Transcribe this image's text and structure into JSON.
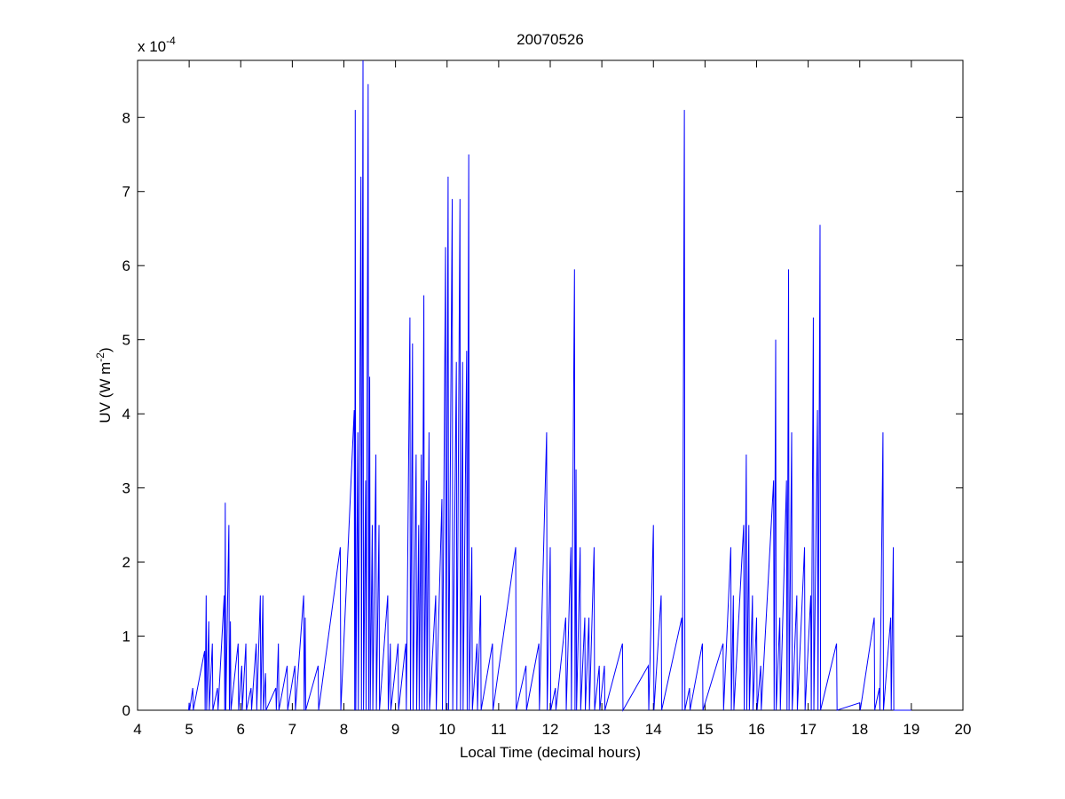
{
  "chart_data": {
    "type": "line",
    "title": "20070526",
    "xlabel": "Local Time (decimal hours)",
    "ylabel": {
      "text": "UV (W m",
      "superscript": "-2",
      "suffix": ")"
    },
    "y_multiplier": {
      "text": "x 10",
      "superscript": "-4"
    },
    "color": "#0000ff",
    "xlim": [
      4,
      20
    ],
    "xticks": [
      4,
      5,
      6,
      7,
      8,
      9,
      10,
      11,
      12,
      13,
      14,
      15,
      16,
      17,
      18,
      19,
      20
    ],
    "ylim": [
      0,
      8.77
    ],
    "yticks": [
      0,
      1,
      2,
      3,
      4,
      5,
      6,
      7,
      8
    ],
    "x": [
      4.99,
      5.0,
      5.01,
      5.07,
      5.08,
      5.3,
      5.31,
      5.33,
      5.34,
      5.38,
      5.39,
      5.45,
      5.46,
      5.55,
      5.56,
      5.68,
      5.69,
      5.7,
      5.71,
      5.77,
      5.78,
      5.8,
      5.81,
      5.95,
      5.96,
      6.02,
      6.03,
      6.1,
      6.11,
      6.2,
      6.21,
      6.3,
      6.31,
      6.38,
      6.39,
      6.43,
      6.44,
      6.48,
      6.49,
      6.68,
      6.69,
      6.73,
      6.74,
      6.9,
      6.91,
      7.05,
      7.06,
      7.22,
      7.23,
      7.25,
      7.26,
      7.5,
      7.51,
      7.93,
      7.94,
      8.2,
      8.21,
      8.22,
      8.23,
      8.27,
      8.28,
      8.33,
      8.34,
      8.37,
      8.38,
      8.42,
      8.43,
      8.47,
      8.48,
      8.5,
      8.51,
      8.55,
      8.56,
      8.62,
      8.63,
      8.68,
      8.69,
      8.85,
      8.86,
      8.9,
      8.91,
      9.05,
      9.06,
      9.2,
      9.21,
      9.28,
      9.29,
      9.33,
      9.34,
      9.4,
      9.41,
      9.45,
      9.46,
      9.5,
      9.51,
      9.55,
      9.56,
      9.6,
      9.61,
      9.65,
      9.66,
      9.78,
      9.79,
      9.9,
      9.91,
      9.97,
      9.98,
      10.02,
      10.03,
      10.1,
      10.11,
      10.18,
      10.19,
      10.25,
      10.26,
      10.3,
      10.31,
      10.38,
      10.39,
      10.42,
      10.43,
      10.48,
      10.49,
      10.58,
      10.59,
      10.65,
      10.66,
      10.88,
      10.89,
      11.33,
      11.34,
      11.53,
      11.54,
      11.78,
      11.79,
      11.93,
      11.94,
      12.0,
      12.01,
      12.1,
      12.11,
      12.3,
      12.31,
      12.4,
      12.41,
      12.47,
      12.48,
      12.5,
      12.51,
      12.58,
      12.59,
      12.67,
      12.68,
      12.75,
      12.76,
      12.85,
      12.86,
      12.95,
      12.96,
      13.05,
      13.06,
      13.4,
      13.41,
      13.9,
      13.91,
      14.0,
      14.01,
      14.15,
      14.16,
      14.55,
      14.56,
      14.6,
      14.61,
      14.7,
      14.71,
      14.95,
      14.96,
      15.35,
      15.36,
      15.5,
      15.51,
      15.55,
      15.56,
      15.75,
      15.76,
      15.8,
      15.81,
      15.85,
      15.86,
      15.92,
      15.93,
      16.0,
      16.01,
      16.08,
      16.09,
      16.33,
      16.34,
      16.37,
      16.38,
      16.45,
      16.46,
      16.58,
      16.59,
      16.62,
      16.63,
      16.68,
      16.69,
      16.78,
      16.79,
      16.93,
      16.94,
      17.05,
      17.06,
      17.1,
      17.11,
      17.18,
      17.19,
      17.23,
      17.24,
      17.55,
      17.56,
      18.0,
      18.01,
      18.28,
      18.29,
      18.38,
      18.39,
      18.45,
      18.46,
      18.6,
      18.61,
      18.65,
      18.66,
      19.0
    ],
    "values": [
      0,
      0.1,
      0,
      0.3,
      0,
      0.8,
      0,
      1.55,
      0,
      1.2,
      0,
      0.9,
      0,
      0.3,
      0,
      1.55,
      0,
      2.8,
      0,
      2.5,
      0,
      1.2,
      0,
      0.9,
      0,
      0.6,
      0,
      0.9,
      0,
      0.3,
      0,
      0.9,
      0,
      1.55,
      0,
      1.55,
      0,
      0.5,
      0,
      0.3,
      0,
      0.9,
      0,
      0.6,
      0,
      0.6,
      0,
      1.55,
      0,
      1.25,
      0,
      0.6,
      0,
      2.2,
      0,
      4.05,
      0,
      8.1,
      0,
      3.75,
      0,
      7.2,
      0,
      8.77,
      0,
      3.1,
      0,
      8.45,
      0,
      4.5,
      0,
      2.5,
      0,
      3.45,
      0,
      2.5,
      0,
      1.55,
      0,
      0.9,
      0,
      0.9,
      0,
      0.9,
      0,
      5.3,
      0,
      4.95,
      0,
      3.45,
      0,
      2.5,
      0,
      3.45,
      0,
      5.6,
      0,
      3.1,
      0,
      3.75,
      0,
      1.55,
      0,
      2.85,
      0,
      6.25,
      0,
      7.2,
      0,
      6.9,
      0,
      4.7,
      0,
      6.9,
      0,
      4.7,
      0,
      4.85,
      0,
      7.5,
      0,
      2.2,
      0,
      0.9,
      0,
      1.55,
      0,
      0.9,
      0,
      2.2,
      0,
      0.6,
      0,
      0.9,
      0,
      3.75,
      0,
      2.2,
      0,
      0.3,
      0,
      1.25,
      0,
      2.2,
      0,
      5.95,
      0,
      3.25,
      0,
      2.2,
      0,
      1.25,
      0,
      1.25,
      0,
      2.2,
      0,
      0.6,
      0,
      0.6,
      0,
      0.9,
      0,
      0.6,
      0,
      2.5,
      0,
      1.55,
      0,
      1.25,
      0,
      8.1,
      0,
      0.3,
      0,
      0.9,
      0,
      0.9,
      0,
      2.2,
      0,
      1.55,
      0,
      2.5,
      0,
      3.45,
      0,
      2.5,
      0,
      1.55,
      0,
      1.25,
      0,
      0.6,
      0,
      3.1,
      0,
      5.0,
      0,
      1.25,
      0,
      3.1,
      0,
      5.95,
      0,
      3.75,
      0,
      1.55,
      0,
      2.2,
      0,
      1.55,
      0,
      5.3,
      0,
      4.05,
      0,
      6.55,
      0,
      0.9,
      0,
      0.1,
      0,
      1.25,
      0,
      0.3,
      0,
      3.75,
      0,
      1.25,
      0,
      2.2,
      0,
      0
    ]
  }
}
